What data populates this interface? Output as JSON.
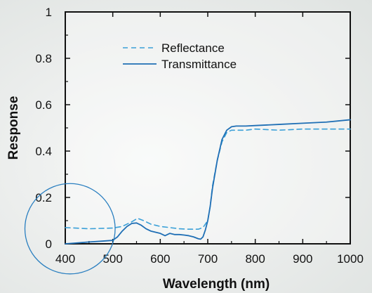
{
  "chart_data": {
    "type": "line",
    "title": "",
    "xlabel": "Wavelength (nm)",
    "ylabel": "Response",
    "xlim": [
      400,
      1000
    ],
    "ylim": [
      0,
      1
    ],
    "x_ticks": [
      "400",
      "500",
      "600",
      "700",
      "800",
      "900",
      "1000"
    ],
    "y_ticks": [
      "0",
      "0.2",
      "0.4",
      "0.6",
      "0.8",
      "1"
    ],
    "grid": false,
    "legend_position": "top-center",
    "series": [
      {
        "name": "Reflectance",
        "style": "dashed",
        "color": "#3aa0d8",
        "x": [
          400,
          450,
          500,
          520,
          540,
          552,
          565,
          580,
          600,
          620,
          640,
          660,
          680,
          690,
          700,
          705,
          710,
          720,
          730,
          740,
          750,
          760,
          780,
          800,
          850,
          900,
          950,
          1000
        ],
        "y": [
          0.07,
          0.065,
          0.068,
          0.075,
          0.095,
          0.11,
          0.1,
          0.085,
          0.075,
          0.07,
          0.065,
          0.063,
          0.063,
          0.07,
          0.1,
          0.16,
          0.25,
          0.36,
          0.44,
          0.48,
          0.49,
          0.49,
          0.49,
          0.495,
          0.49,
          0.495,
          0.495,
          0.495
        ]
      },
      {
        "name": "Transmittance",
        "style": "solid",
        "color": "#1f6fb5",
        "x": [
          400,
          420,
          450,
          480,
          500,
          510,
          520,
          530,
          540,
          550,
          560,
          570,
          580,
          590,
          600,
          610,
          620,
          630,
          640,
          650,
          660,
          670,
          680,
          685,
          690,
          695,
          700,
          705,
          710,
          720,
          730,
          740,
          750,
          760,
          780,
          800,
          850,
          900,
          950,
          1000
        ],
        "y": [
          0.0,
          0.003,
          0.008,
          0.012,
          0.015,
          0.03,
          0.055,
          0.075,
          0.088,
          0.09,
          0.08,
          0.065,
          0.055,
          0.05,
          0.045,
          0.035,
          0.045,
          0.04,
          0.04,
          0.038,
          0.035,
          0.03,
          0.022,
          0.02,
          0.03,
          0.06,
          0.1,
          0.16,
          0.24,
          0.36,
          0.45,
          0.49,
          0.505,
          0.508,
          0.508,
          0.51,
          0.515,
          0.52,
          0.525,
          0.535
        ]
      }
    ],
    "annotation_circle": {
      "cx": 410,
      "cy": 0.065,
      "radius_x_units": 95,
      "color": "#2a7fc0"
    }
  }
}
